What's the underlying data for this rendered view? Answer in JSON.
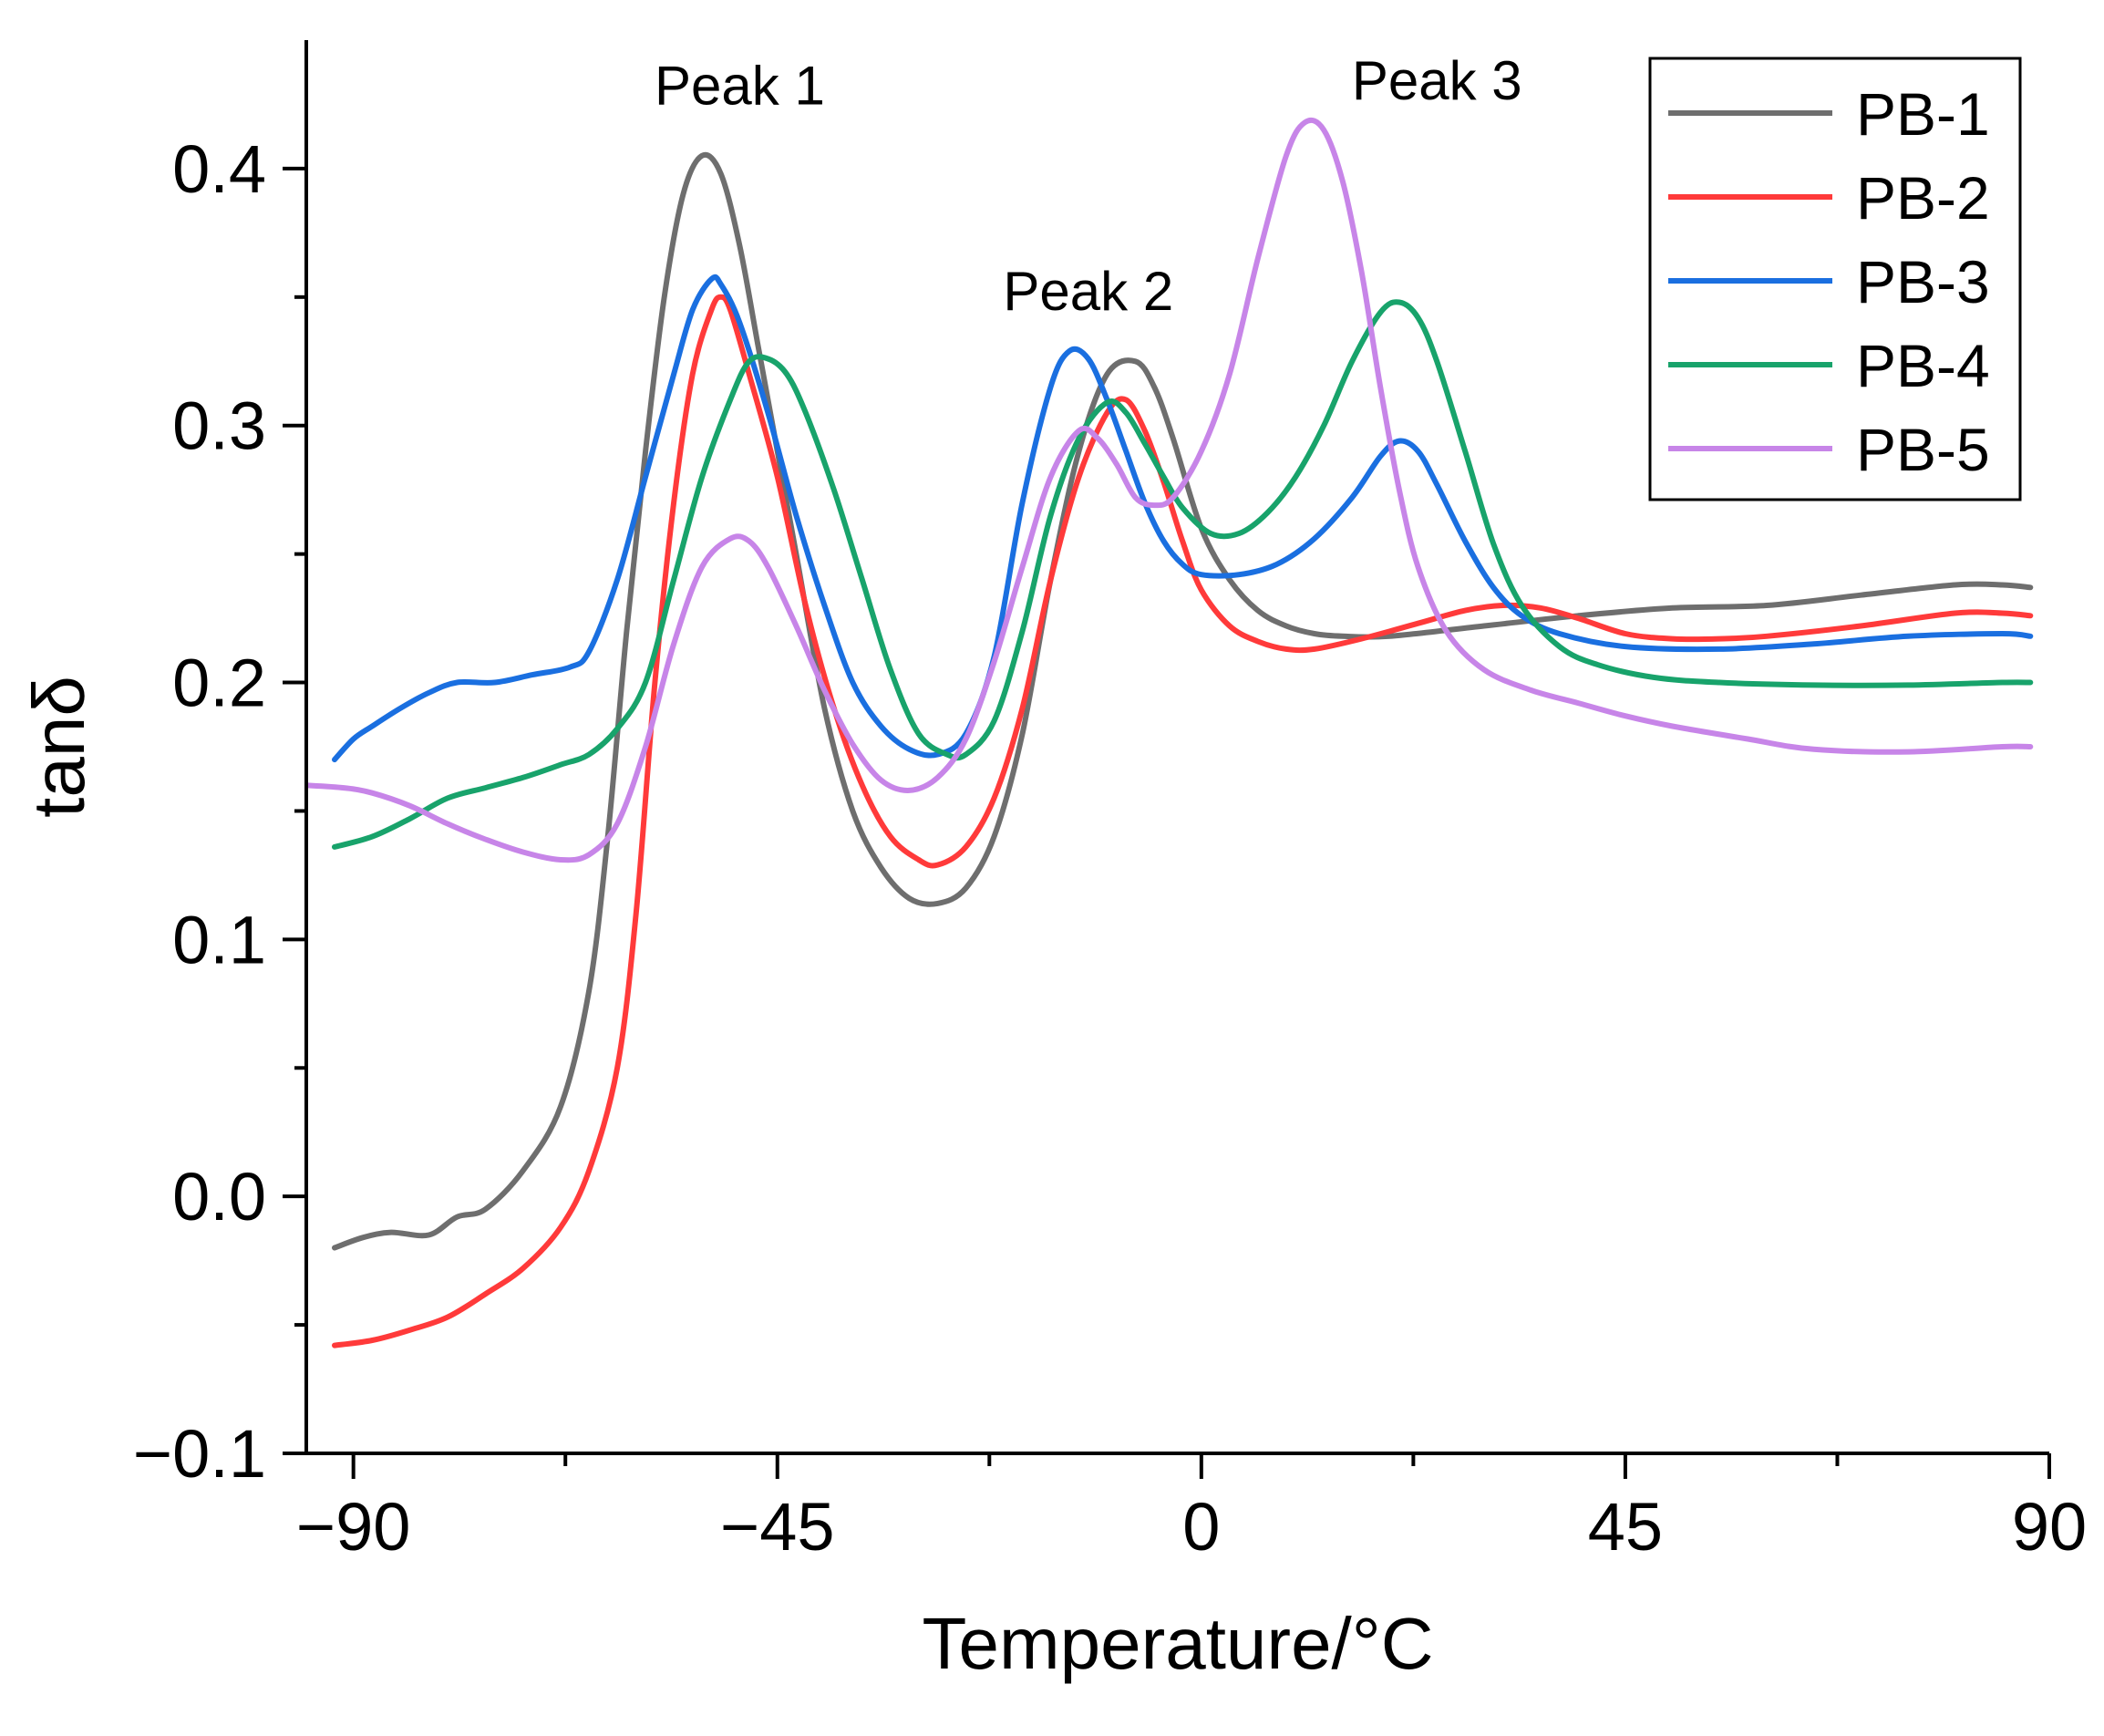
{
  "chart_data": {
    "type": "line",
    "title": "",
    "xlabel": "Temperature/°C",
    "ylabel": "tanδ",
    "xlim": [
      -95,
      90
    ],
    "ylim": [
      -0.1,
      0.45
    ],
    "x_ticks": [
      -90,
      -45,
      0,
      45,
      90
    ],
    "x_tick_labels": [
      "−90",
      "−45",
      "0",
      "45",
      "90"
    ],
    "y_ticks": [
      -0.1,
      0.0,
      0.1,
      0.2,
      0.3,
      0.4
    ],
    "y_tick_labels": [
      "−0.1",
      "0.0",
      "0.1",
      "0.2",
      "0.3",
      "0.4"
    ],
    "legend_position": "top-right",
    "annotations": [
      {
        "text": "Peak 1",
        "x": -49,
        "y": 0.425
      },
      {
        "text": "Peak 2",
        "x": -12,
        "y": 0.345
      },
      {
        "text": "Peak 3",
        "x": 25,
        "y": 0.427
      }
    ],
    "series": [
      {
        "name": "PB-1",
        "color": "#6e6e6e",
        "points": [
          [
            -92,
            -0.02
          ],
          [
            -89,
            -0.016
          ],
          [
            -86,
            -0.014
          ],
          [
            -82,
            -0.015
          ],
          [
            -79,
            -0.008
          ],
          [
            -76,
            -0.005
          ],
          [
            -72,
            0.01
          ],
          [
            -68,
            0.035
          ],
          [
            -65,
            0.08
          ],
          [
            -63,
            0.14
          ],
          [
            -61,
            0.22
          ],
          [
            -59,
            0.29
          ],
          [
            -57,
            0.35
          ],
          [
            -55,
            0.39
          ],
          [
            -53,
            0.405
          ],
          [
            -51,
            0.398
          ],
          [
            -49,
            0.37
          ],
          [
            -47,
            0.33
          ],
          [
            -45,
            0.29
          ],
          [
            -43,
            0.25
          ],
          [
            -40,
            0.19
          ],
          [
            -37,
            0.15
          ],
          [
            -34,
            0.128
          ],
          [
            -31,
            0.116
          ],
          [
            -28,
            0.114
          ],
          [
            -25,
            0.12
          ],
          [
            -22,
            0.14
          ],
          [
            -19,
            0.18
          ],
          [
            -16,
            0.24
          ],
          [
            -13,
            0.29
          ],
          [
            -10,
            0.32
          ],
          [
            -7,
            0.325
          ],
          [
            -5,
            0.315
          ],
          [
            -3,
            0.295
          ],
          [
            0,
            0.26
          ],
          [
            3,
            0.24
          ],
          [
            6,
            0.228
          ],
          [
            9,
            0.222
          ],
          [
            12,
            0.219
          ],
          [
            15,
            0.218
          ],
          [
            20,
            0.218
          ],
          [
            30,
            0.222
          ],
          [
            40,
            0.226
          ],
          [
            50,
            0.229
          ],
          [
            60,
            0.23
          ],
          [
            70,
            0.234
          ],
          [
            80,
            0.238
          ],
          [
            85,
            0.238
          ],
          [
            88,
            0.237
          ]
        ]
      },
      {
        "name": "PB-2",
        "color": "#ff3a3a",
        "points": [
          [
            -92,
            -0.058
          ],
          [
            -88,
            -0.056
          ],
          [
            -84,
            -0.052
          ],
          [
            -80,
            -0.047
          ],
          [
            -76,
            -0.038
          ],
          [
            -72,
            -0.028
          ],
          [
            -68,
            -0.012
          ],
          [
            -65,
            0.01
          ],
          [
            -62,
            0.05
          ],
          [
            -60,
            0.11
          ],
          [
            -58,
            0.2
          ],
          [
            -56,
            0.27
          ],
          [
            -54,
            0.32
          ],
          [
            -52,
            0.345
          ],
          [
            -51,
            0.35
          ],
          [
            -50,
            0.345
          ],
          [
            -48,
            0.32
          ],
          [
            -45,
            0.28
          ],
          [
            -42,
            0.23
          ],
          [
            -39,
            0.19
          ],
          [
            -36,
            0.16
          ],
          [
            -33,
            0.14
          ],
          [
            -30,
            0.131
          ],
          [
            -28,
            0.129
          ],
          [
            -25,
            0.136
          ],
          [
            -22,
            0.155
          ],
          [
            -19,
            0.19
          ],
          [
            -16,
            0.24
          ],
          [
            -13,
            0.28
          ],
          [
            -10,
            0.305
          ],
          [
            -8,
            0.31
          ],
          [
            -6,
            0.298
          ],
          [
            -4,
            0.278
          ],
          [
            -2,
            0.255
          ],
          [
            0,
            0.236
          ],
          [
            3,
            0.222
          ],
          [
            6,
            0.216
          ],
          [
            9,
            0.213
          ],
          [
            12,
            0.213
          ],
          [
            17,
            0.217
          ],
          [
            23,
            0.223
          ],
          [
            28,
            0.228
          ],
          [
            32,
            0.23
          ],
          [
            36,
            0.229
          ],
          [
            40,
            0.225
          ],
          [
            45,
            0.219
          ],
          [
            50,
            0.217
          ],
          [
            55,
            0.217
          ],
          [
            60,
            0.218
          ],
          [
            70,
            0.222
          ],
          [
            80,
            0.227
          ],
          [
            85,
            0.227
          ],
          [
            88,
            0.226
          ]
        ]
      },
      {
        "name": "PB-3",
        "color": "#1a6fe0",
        "points": [
          [
            -92,
            0.17
          ],
          [
            -90,
            0.178
          ],
          [
            -88,
            0.183
          ],
          [
            -85,
            0.19
          ],
          [
            -82,
            0.196
          ],
          [
            -79,
            0.2
          ],
          [
            -75,
            0.2
          ],
          [
            -71,
            0.203
          ],
          [
            -67,
            0.206
          ],
          [
            -65,
            0.212
          ],
          [
            -62,
            0.24
          ],
          [
            -59,
            0.28
          ],
          [
            -56,
            0.32
          ],
          [
            -54,
            0.345
          ],
          [
            -52,
            0.357
          ],
          [
            -51,
            0.355
          ],
          [
            -49,
            0.34
          ],
          [
            -46,
            0.305
          ],
          [
            -43,
            0.265
          ],
          [
            -40,
            0.23
          ],
          [
            -37,
            0.2
          ],
          [
            -34,
            0.183
          ],
          [
            -31,
            0.174
          ],
          [
            -28,
            0.172
          ],
          [
            -25,
            0.18
          ],
          [
            -22,
            0.21
          ],
          [
            -19,
            0.27
          ],
          [
            -16,
            0.315
          ],
          [
            -14,
            0.329
          ],
          [
            -12,
            0.326
          ],
          [
            -10,
            0.31
          ],
          [
            -8,
            0.29
          ],
          [
            -6,
            0.27
          ],
          [
            -4,
            0.255
          ],
          [
            -2,
            0.246
          ],
          [
            0,
            0.242
          ],
          [
            4,
            0.242
          ],
          [
            8,
            0.246
          ],
          [
            12,
            0.256
          ],
          [
            16,
            0.272
          ],
          [
            19,
            0.288
          ],
          [
            21,
            0.294
          ],
          [
            23,
            0.29
          ],
          [
            25,
            0.277
          ],
          [
            28,
            0.255
          ],
          [
            31,
            0.237
          ],
          [
            34,
            0.226
          ],
          [
            38,
            0.219
          ],
          [
            45,
            0.214
          ],
          [
            55,
            0.213
          ],
          [
            65,
            0.215
          ],
          [
            75,
            0.218
          ],
          [
            85,
            0.219
          ],
          [
            88,
            0.218
          ]
        ]
      },
      {
        "name": "PB-4",
        "color": "#18a36b",
        "points": [
          [
            -92,
            0.136
          ],
          [
            -88,
            0.14
          ],
          [
            -84,
            0.147
          ],
          [
            -80,
            0.155
          ],
          [
            -76,
            0.159
          ],
          [
            -72,
            0.163
          ],
          [
            -68,
            0.168
          ],
          [
            -65,
            0.172
          ],
          [
            -62,
            0.182
          ],
          [
            -59,
            0.2
          ],
          [
            -56,
            0.24
          ],
          [
            -53,
            0.28
          ],
          [
            -50,
            0.31
          ],
          [
            -48,
            0.325
          ],
          [
            -46,
            0.326
          ],
          [
            -44,
            0.32
          ],
          [
            -42,
            0.305
          ],
          [
            -39,
            0.275
          ],
          [
            -36,
            0.24
          ],
          [
            -33,
            0.205
          ],
          [
            -30,
            0.18
          ],
          [
            -27,
            0.172
          ],
          [
            -25,
            0.172
          ],
          [
            -22,
            0.185
          ],
          [
            -19,
            0.22
          ],
          [
            -16,
            0.265
          ],
          [
            -13,
            0.295
          ],
          [
            -10,
            0.309
          ],
          [
            -8,
            0.305
          ],
          [
            -6,
            0.293
          ],
          [
            -4,
            0.28
          ],
          [
            -2,
            0.268
          ],
          [
            1,
            0.258
          ],
          [
            4,
            0.258
          ],
          [
            7,
            0.266
          ],
          [
            10,
            0.28
          ],
          [
            13,
            0.3
          ],
          [
            16,
            0.325
          ],
          [
            19,
            0.344
          ],
          [
            21,
            0.348
          ],
          [
            23,
            0.342
          ],
          [
            25,
            0.325
          ],
          [
            28,
            0.29
          ],
          [
            31,
            0.254
          ],
          [
            34,
            0.23
          ],
          [
            38,
            0.214
          ],
          [
            42,
            0.207
          ],
          [
            48,
            0.202
          ],
          [
            55,
            0.2
          ],
          [
            65,
            0.199
          ],
          [
            75,
            0.199
          ],
          [
            85,
            0.2
          ],
          [
            88,
            0.2
          ]
        ]
      },
      {
        "name": "PB-5",
        "color": "#c785e8",
        "points": [
          [
            -95,
            0.16
          ],
          [
            -91,
            0.159
          ],
          [
            -88,
            0.157
          ],
          [
            -84,
            0.152
          ],
          [
            -80,
            0.145
          ],
          [
            -76,
            0.139
          ],
          [
            -72,
            0.134
          ],
          [
            -68,
            0.131
          ],
          [
            -65,
            0.133
          ],
          [
            -62,
            0.145
          ],
          [
            -59,
            0.175
          ],
          [
            -56,
            0.215
          ],
          [
            -53,
            0.245
          ],
          [
            -50,
            0.256
          ],
          [
            -48,
            0.255
          ],
          [
            -46,
            0.245
          ],
          [
            -43,
            0.222
          ],
          [
            -40,
            0.197
          ],
          [
            -37,
            0.176
          ],
          [
            -34,
            0.162
          ],
          [
            -31,
            0.158
          ],
          [
            -28,
            0.163
          ],
          [
            -25,
            0.178
          ],
          [
            -22,
            0.208
          ],
          [
            -19,
            0.245
          ],
          [
            -16,
            0.28
          ],
          [
            -13,
            0.298
          ],
          [
            -11,
            0.295
          ],
          [
            -9,
            0.285
          ],
          [
            -7,
            0.272
          ],
          [
            -5,
            0.269
          ],
          [
            -3,
            0.272
          ],
          [
            0,
            0.29
          ],
          [
            3,
            0.32
          ],
          [
            6,
            0.365
          ],
          [
            9,
            0.405
          ],
          [
            11,
            0.418
          ],
          [
            13,
            0.415
          ],
          [
            15,
            0.395
          ],
          [
            17,
            0.36
          ],
          [
            19,
            0.315
          ],
          [
            21,
            0.275
          ],
          [
            23,
            0.245
          ],
          [
            26,
            0.22
          ],
          [
            30,
            0.205
          ],
          [
            35,
            0.197
          ],
          [
            40,
            0.192
          ],
          [
            45,
            0.187
          ],
          [
            50,
            0.183
          ],
          [
            58,
            0.178
          ],
          [
            65,
            0.174
          ],
          [
            75,
            0.173
          ],
          [
            85,
            0.175
          ],
          [
            88,
            0.175
          ]
        ]
      }
    ]
  }
}
